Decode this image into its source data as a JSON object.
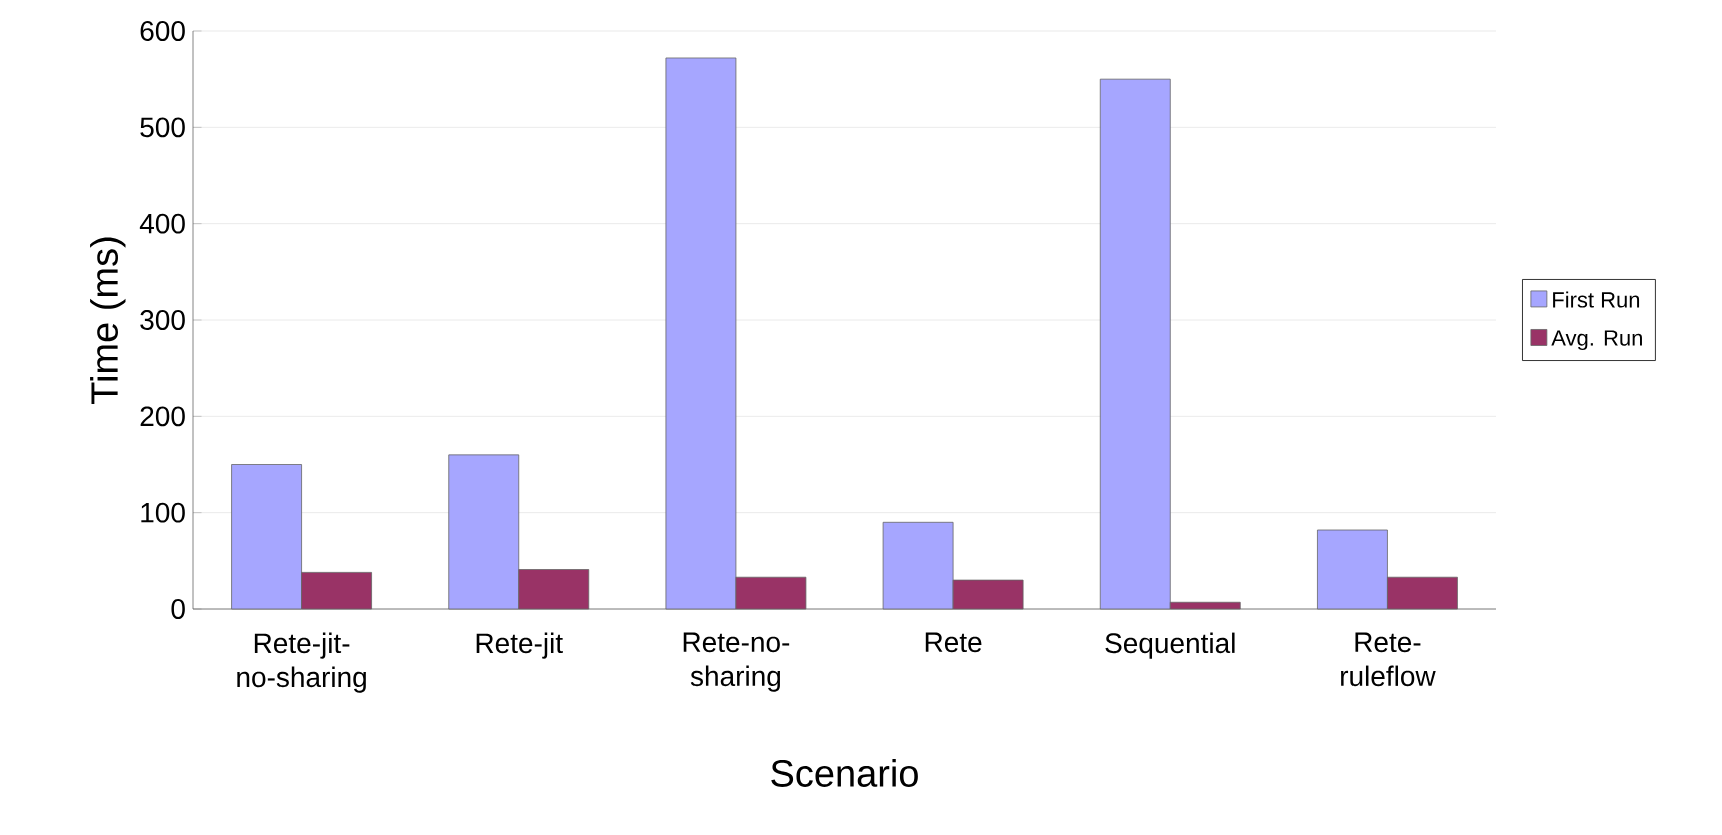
{
  "chart_data": {
    "type": "bar",
    "xlabel": "Scenario",
    "ylabel": "Time (ms)",
    "categories": [
      "Rete-jit-no-sharing",
      "Rete-jit",
      "Rete-no-sharing",
      "Rete",
      "Sequential",
      "Rete-ruleflow"
    ],
    "series": [
      {
        "name": "First Run",
        "color": "#a6a6ff",
        "values": [
          150,
          160,
          572,
          90,
          550,
          82
        ]
      },
      {
        "name": "Avg. Run",
        "color": "#993366",
        "values": [
          38,
          41,
          33,
          30,
          7,
          33
        ]
      }
    ],
    "ylim": [
      0,
      600
    ],
    "yticks": [
      0,
      100,
      200,
      300,
      400,
      500,
      600
    ],
    "grid": "y",
    "legend": "right"
  }
}
